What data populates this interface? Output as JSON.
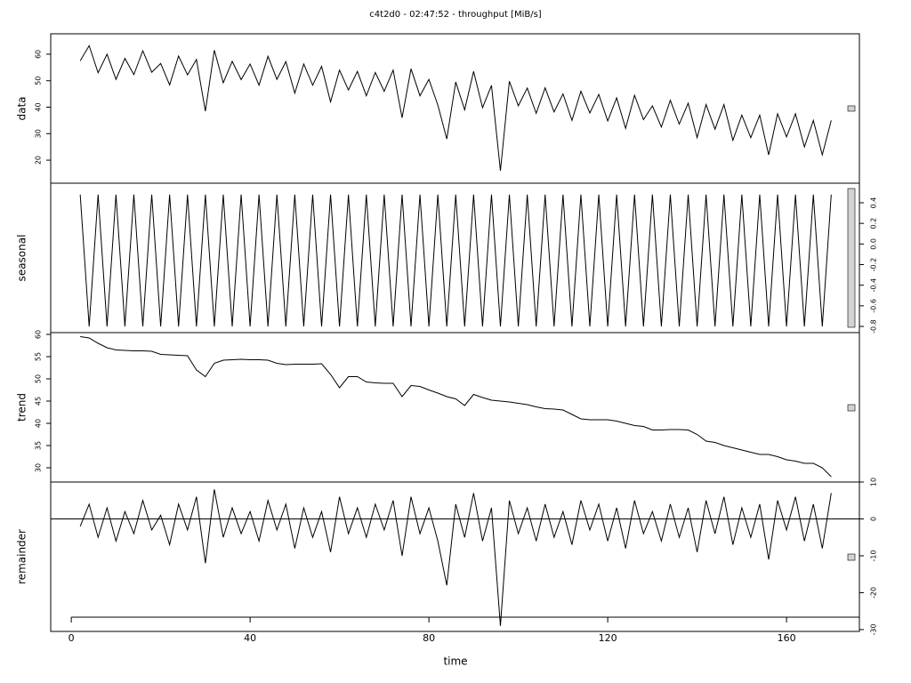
{
  "title": "c4t2d0 - 02:47:52 - throughput [MiB/s]",
  "x_label": "time",
  "xlim": [
    -4.6,
    176.3
  ],
  "xticks": [
    0,
    40,
    80,
    120,
    160
  ],
  "chart_data": [
    {
      "type": "line",
      "y_label": "data",
      "yaxis_side": "left",
      "ylim": [
        11.3,
        67.7
      ],
      "yticks": [
        20,
        30,
        40,
        50,
        60
      ],
      "x": [
        2,
        4,
        6,
        8,
        10,
        12,
        14,
        16,
        18,
        20,
        22,
        24,
        26,
        28,
        30,
        32,
        34,
        36,
        38,
        40,
        42,
        44,
        46,
        48,
        50,
        52,
        54,
        56,
        58,
        60,
        62,
        64,
        66,
        68,
        70,
        72,
        74,
        76,
        78,
        80,
        82,
        84,
        86,
        88,
        90,
        92,
        94,
        96,
        98,
        100,
        102,
        104,
        106,
        108,
        110,
        112,
        114,
        116,
        118,
        120,
        122,
        124,
        126,
        128,
        130,
        132,
        134,
        136,
        138,
        140,
        142,
        144,
        146,
        148,
        150,
        152,
        154,
        156,
        158,
        160,
        162,
        164,
        166,
        168,
        170
      ],
      "series": [
        {
          "name": "data",
          "color": "#000000",
          "values": [
            57.5,
            63.2,
            53,
            60,
            50.5,
            58.4,
            52.3,
            61.3,
            53.2,
            56.5,
            48.4,
            59.3,
            52.2,
            58,
            38.5,
            61.5,
            49.2,
            57.3,
            50.4,
            56.3,
            48.3,
            59.2,
            50.5,
            57.2,
            45.3,
            56.3,
            48.3,
            55.4,
            42,
            54,
            46.5,
            53.5,
            44.3,
            53.1,
            46,
            54,
            36,
            54.5,
            44.3,
            50.5,
            40.8,
            28,
            49.5,
            39,
            53.5,
            39.8,
            48.2,
            16,
            49.8,
            40.5,
            47.2,
            37.7,
            47.3,
            38.2,
            45,
            35,
            46,
            37.8,
            44.8,
            34.8,
            43.5,
            32,
            44.5,
            35.3,
            40.5,
            32.5,
            42.6,
            33.6,
            41.5,
            28.5,
            41,
            31.7,
            41,
            27.5,
            37,
            28.5,
            37,
            22,
            37.5,
            28.8,
            37.5,
            25,
            35,
            22,
            35
          ]
        }
      ]
    },
    {
      "type": "line",
      "y_label": "seasonal",
      "yaxis_side": "right",
      "ylim": [
        -0.86,
        0.59
      ],
      "yticks": [
        {
          "value": -0.8,
          "label": "-0.8"
        },
        {
          "value": -0.6,
          "label": "-0.6"
        },
        {
          "value": -0.4,
          "label": "-0.4"
        },
        {
          "value": -0.2,
          "label": "-0.2"
        },
        {
          "value": 0,
          "label": "0.0"
        },
        0.2,
        0.4
      ],
      "x": [
        2,
        4,
        6,
        8,
        10,
        12,
        14,
        16,
        18,
        20,
        22,
        24,
        26,
        28,
        30,
        32,
        34,
        36,
        38,
        40,
        42,
        44,
        46,
        48,
        50,
        52,
        54,
        56,
        58,
        60,
        62,
        64,
        66,
        68,
        70,
        72,
        74,
        76,
        78,
        80,
        82,
        84,
        86,
        88,
        90,
        92,
        94,
        96,
        98,
        100,
        102,
        104,
        106,
        108,
        110,
        112,
        114,
        116,
        118,
        120,
        122,
        124,
        126,
        128,
        130,
        132,
        134,
        136,
        138,
        140,
        142,
        144,
        146,
        148,
        150,
        152,
        154,
        156,
        158,
        160,
        162,
        164,
        166,
        168,
        170
      ],
      "series": [
        {
          "name": "seasonal",
          "color": "#000000",
          "values": [
            0.48,
            -0.8,
            0.48,
            -0.8,
            0.48,
            -0.8,
            0.48,
            -0.8,
            0.48,
            -0.8,
            0.48,
            -0.8,
            0.48,
            -0.8,
            0.48,
            -0.8,
            0.48,
            -0.8,
            0.48,
            -0.8,
            0.48,
            -0.8,
            0.48,
            -0.8,
            0.48,
            -0.8,
            0.48,
            -0.8,
            0.48,
            -0.8,
            0.48,
            -0.8,
            0.48,
            -0.8,
            0.48,
            -0.8,
            0.48,
            -0.8,
            0.48,
            -0.8,
            0.48,
            -0.8,
            0.48,
            -0.8,
            0.48,
            -0.8,
            0.48,
            -0.8,
            0.48,
            -0.8,
            0.48,
            -0.8,
            0.48,
            -0.8,
            0.48,
            -0.8,
            0.48,
            -0.8,
            0.48,
            -0.8,
            0.48,
            -0.8,
            0.48,
            -0.8,
            0.48,
            -0.8,
            0.48,
            -0.8,
            0.48,
            -0.8,
            0.48,
            -0.8,
            0.48,
            -0.8,
            0.48,
            -0.8,
            0.48,
            -0.8,
            0.48,
            -0.8,
            0.48,
            -0.8,
            0.48,
            -0.8,
            0.48
          ]
        }
      ]
    },
    {
      "type": "line",
      "y_label": "trend",
      "yaxis_side": "left",
      "ylim": [
        26.8,
        60.4
      ],
      "yticks": [
        30,
        35,
        40,
        45,
        50,
        55,
        60
      ],
      "x": [
        2,
        4,
        6,
        8,
        10,
        12,
        14,
        16,
        18,
        20,
        22,
        24,
        26,
        28,
        30,
        32,
        34,
        36,
        38,
        40,
        42,
        44,
        46,
        48,
        50,
        52,
        54,
        56,
        58,
        60,
        62,
        64,
        66,
        68,
        70,
        72,
        74,
        76,
        78,
        80,
        82,
        84,
        86,
        88,
        90,
        92,
        94,
        96,
        98,
        100,
        102,
        104,
        106,
        108,
        110,
        112,
        114,
        116,
        118,
        120,
        122,
        124,
        126,
        128,
        130,
        132,
        134,
        136,
        138,
        140,
        142,
        144,
        146,
        148,
        150,
        152,
        154,
        156,
        158,
        160,
        162,
        164,
        166,
        168,
        170
      ],
      "series": [
        {
          "name": "trend",
          "color": "#000000",
          "values": [
            59.5,
            59.2,
            58,
            57,
            56.5,
            56.4,
            56.3,
            56.3,
            56.2,
            55.5,
            55.4,
            55.3,
            55.2,
            52,
            50.5,
            53.5,
            54.2,
            54.3,
            54.4,
            54.3,
            54.3,
            54.2,
            53.5,
            53.2,
            53.3,
            53.3,
            53.3,
            53.4,
            51,
            48,
            50.5,
            50.5,
            49.3,
            49.1,
            49,
            49,
            46,
            48.5,
            48.3,
            47.5,
            46.8,
            46,
            45.5,
            44,
            46.5,
            45.8,
            45.2,
            45,
            44.8,
            44.5,
            44.2,
            43.7,
            43.3,
            43.2,
            43,
            42,
            41,
            40.8,
            40.8,
            40.8,
            40.5,
            40,
            39.5,
            39.3,
            38.5,
            38.5,
            38.6,
            38.6,
            38.5,
            37.5,
            36,
            35.7,
            35,
            34.5,
            34,
            33.5,
            33,
            33,
            32.5,
            31.8,
            31.5,
            31,
            31,
            30,
            28
          ]
        }
      ]
    },
    {
      "type": "line",
      "y_label": "remainder",
      "yaxis_side": "right",
      "ylim": [
        -30.5,
        10
      ],
      "yticks": [
        -30,
        -20,
        -10,
        0,
        10
      ],
      "zero_line": true,
      "x": [
        2,
        4,
        6,
        8,
        10,
        12,
        14,
        16,
        18,
        20,
        22,
        24,
        26,
        28,
        30,
        32,
        34,
        36,
        38,
        40,
        42,
        44,
        46,
        48,
        50,
        52,
        54,
        56,
        58,
        60,
        62,
        64,
        66,
        68,
        70,
        72,
        74,
        76,
        78,
        80,
        82,
        84,
        86,
        88,
        90,
        92,
        94,
        96,
        98,
        100,
        102,
        104,
        106,
        108,
        110,
        112,
        114,
        116,
        118,
        120,
        122,
        124,
        126,
        128,
        130,
        132,
        134,
        136,
        138,
        140,
        142,
        144,
        146,
        148,
        150,
        152,
        154,
        156,
        158,
        160,
        162,
        164,
        166,
        168,
        170
      ],
      "series": [
        {
          "name": "remainder",
          "color": "#000000",
          "values": [
            -2,
            4,
            -5,
            3,
            -6,
            2,
            -4,
            5,
            -3,
            1,
            -7,
            4,
            -3,
            6,
            -12,
            8,
            -5,
            3,
            -4,
            2,
            -6,
            5,
            -3,
            4,
            -8,
            3,
            -5,
            2,
            -9,
            6,
            -4,
            3,
            -5,
            4,
            -3,
            5,
            -10,
            6,
            -4,
            3,
            -6,
            -18,
            4,
            -5,
            7,
            -6,
            3,
            -29,
            5,
            -4,
            3,
            -6,
            4,
            -5,
            2,
            -7,
            5,
            -3,
            4,
            -6,
            3,
            -8,
            5,
            -4,
            2,
            -6,
            4,
            -5,
            3,
            -9,
            5,
            -4,
            6,
            -7,
            3,
            -5,
            4,
            -11,
            5,
            -3,
            6,
            -6,
            4,
            -8,
            7
          ]
        }
      ]
    }
  ]
}
